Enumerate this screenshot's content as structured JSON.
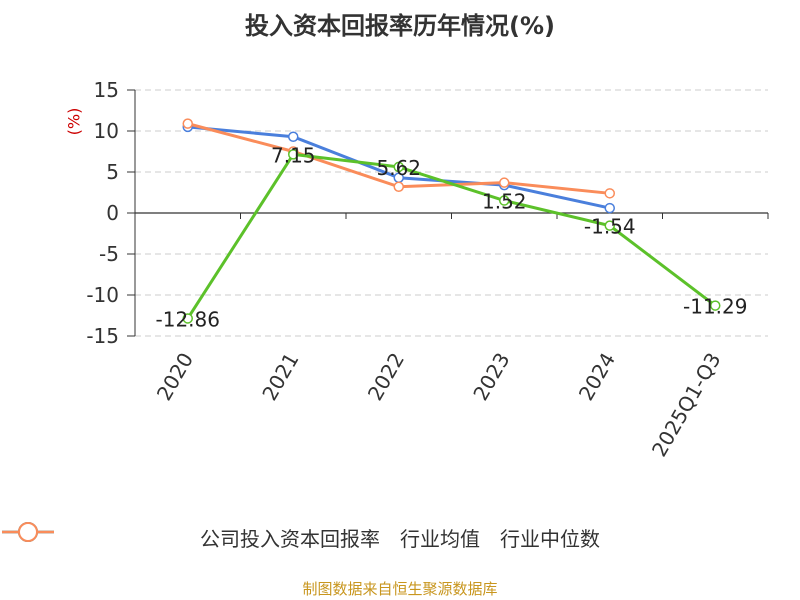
{
  "chart_data": {
    "type": "line",
    "title": "投入资本回报率历年情况(%)",
    "ylabel": "(%)",
    "categories": [
      "2020",
      "2021",
      "2022",
      "2023",
      "2024",
      "2025Q1-Q3"
    ],
    "ylim": [
      -15,
      15
    ],
    "yticks": [
      "15",
      "10",
      "5",
      "0",
      "-5",
      "-10",
      "-15"
    ],
    "grid": true,
    "legend_position": "bottom",
    "series": [
      {
        "name": "公司投入资本回报率",
        "color": "#5cc12a",
        "values": [
          -12.86,
          7.15,
          5.62,
          1.52,
          -1.54,
          -11.29
        ],
        "labels": [
          "-12.86",
          "7.15",
          "5.62",
          "1.52",
          "-1.54",
          "-11.29"
        ]
      },
      {
        "name": "行业均值",
        "color": "#4a7fdc",
        "values": [
          10.5,
          9.3,
          4.3,
          3.4,
          0.6,
          null
        ]
      },
      {
        "name": "行业中位数",
        "color": "#fa8c5a",
        "values": [
          10.9,
          7.5,
          3.2,
          3.7,
          2.4,
          null
        ]
      }
    ]
  },
  "source": "制图数据来自恒生聚源数据库"
}
